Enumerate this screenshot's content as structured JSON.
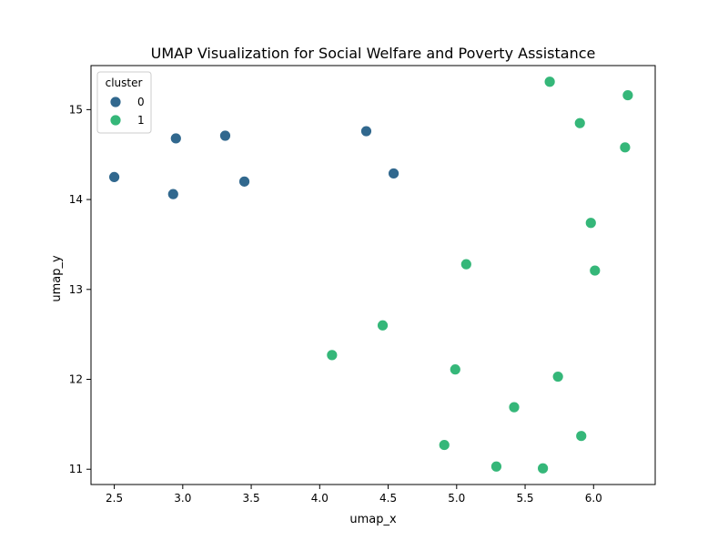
{
  "chart_data": {
    "type": "scatter",
    "title": "UMAP Visualization for Social Welfare and Poverty Assistance",
    "xlabel": "umap_x",
    "ylabel": "umap_y",
    "xlim": [
      2.33,
      6.45
    ],
    "ylim": [
      10.83,
      15.49
    ],
    "xticks": [
      "2.5",
      "3.0",
      "3.5",
      "4.0",
      "4.5",
      "5.0",
      "5.5",
      "6.0"
    ],
    "yticks": [
      "11",
      "12",
      "13",
      "14",
      "15"
    ],
    "grid": false,
    "legend": {
      "title": "cluster",
      "placement": "top-left"
    },
    "series": [
      {
        "name": "0",
        "color": "#31688e",
        "points": [
          {
            "x": 2.5,
            "y": 14.25
          },
          {
            "x": 2.93,
            "y": 14.06
          },
          {
            "x": 2.95,
            "y": 14.68
          },
          {
            "x": 3.31,
            "y": 14.71
          },
          {
            "x": 3.45,
            "y": 14.2
          },
          {
            "x": 4.34,
            "y": 14.76
          },
          {
            "x": 4.54,
            "y": 14.29
          }
        ]
      },
      {
        "name": "1",
        "color": "#35b779",
        "points": [
          {
            "x": 5.68,
            "y": 15.31
          },
          {
            "x": 6.25,
            "y": 15.16
          },
          {
            "x": 5.9,
            "y": 14.85
          },
          {
            "x": 6.23,
            "y": 14.58
          },
          {
            "x": 5.98,
            "y": 13.74
          },
          {
            "x": 5.07,
            "y": 13.28
          },
          {
            "x": 6.01,
            "y": 13.21
          },
          {
            "x": 4.46,
            "y": 12.6
          },
          {
            "x": 4.09,
            "y": 12.27
          },
          {
            "x": 4.99,
            "y": 12.11
          },
          {
            "x": 5.74,
            "y": 12.03
          },
          {
            "x": 5.42,
            "y": 11.69
          },
          {
            "x": 5.91,
            "y": 11.37
          },
          {
            "x": 4.91,
            "y": 11.27
          },
          {
            "x": 5.29,
            "y": 11.03
          },
          {
            "x": 5.63,
            "y": 11.01
          }
        ]
      }
    ]
  }
}
